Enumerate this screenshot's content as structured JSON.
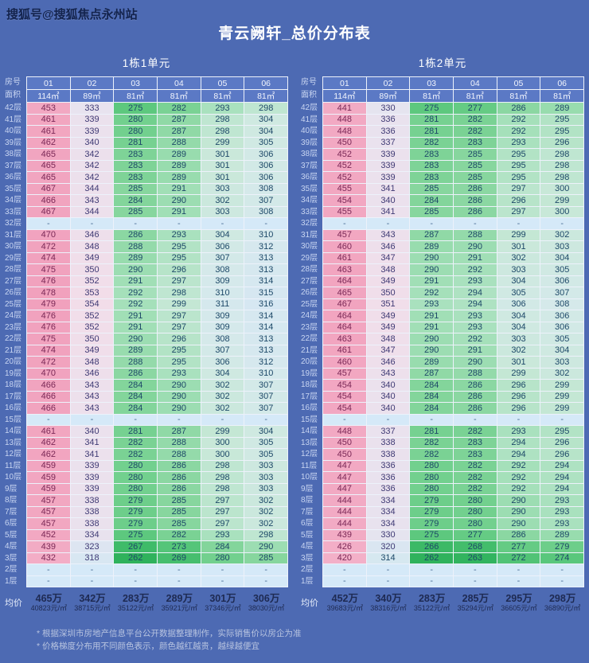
{
  "watermark": "搜狐号@搜狐焦点永州站",
  "title": "青云阙轩_总价分布表",
  "footnotes": [
    "* 根据深圳市房地产信息平台公开数据整理制作，实际销售价以房企为准",
    "* 价格梯度分布用不同颜色表示，颜色越红越贵，越绿越便宜"
  ],
  "colors": {
    "background": "#4d6ab3",
    "header_cell": "#5b79c5",
    "grid_line": "#edf2fb",
    "dash_cell": "#d5e9f8",
    "expensive_pink": "#f2a3bd",
    "cheap_green": "#2fb25c",
    "pink_text": "#7b2957",
    "lavender_text": "#3f3a74",
    "green_text": "#1d4868",
    "row_label_text": "#c9d6f2",
    "average_text": "#1e2a52",
    "title_text": "#ffffff"
  },
  "chart_data": {
    "type": "heatmap",
    "title": "青云阙轩_总价分布表",
    "legend_note": "颜色越红越贵，越绿越便宜",
    "tables": [
      {
        "unit": "1栋1单元",
        "corner": {
          "room_row": "房号",
          "area_row": "面积"
        },
        "columns": [
          "01",
          "02",
          "03",
          "04",
          "05",
          "06"
        ],
        "areas": [
          "114㎡",
          "89㎡",
          "81㎡",
          "81㎡",
          "81㎡",
          "81㎡"
        ],
        "floors": [
          "42层",
          "41层",
          "40层",
          "39层",
          "38层",
          "37层",
          "36层",
          "35层",
          "34层",
          "33层",
          "32层",
          "31层",
          "30层",
          "29层",
          "28层",
          "27层",
          "26层",
          "25层",
          "24层",
          "23层",
          "22层",
          "21层",
          "20层",
          "19层",
          "18层",
          "17层",
          "16层",
          "15层",
          "14层",
          "13层",
          "12层",
          "11层",
          "10层",
          "9层",
          "8层",
          "7层",
          "6层",
          "5层",
          "4层",
          "3层",
          "2层",
          "1层"
        ],
        "rows": [
          [
            453,
            333,
            275,
            282,
            293,
            298
          ],
          [
            461,
            339,
            280,
            287,
            298,
            304
          ],
          [
            461,
            339,
            280,
            287,
            298,
            304
          ],
          [
            462,
            340,
            281,
            288,
            299,
            305
          ],
          [
            465,
            342,
            283,
            289,
            301,
            306
          ],
          [
            465,
            342,
            283,
            289,
            301,
            306
          ],
          [
            465,
            342,
            283,
            289,
            301,
            306
          ],
          [
            467,
            344,
            285,
            291,
            303,
            308
          ],
          [
            466,
            343,
            284,
            290,
            302,
            307
          ],
          [
            467,
            344,
            285,
            291,
            303,
            308
          ],
          [
            "-",
            "-",
            "-",
            "-",
            "-",
            "-"
          ],
          [
            470,
            346,
            286,
            293,
            304,
            310
          ],
          [
            472,
            348,
            288,
            295,
            306,
            312
          ],
          [
            474,
            349,
            289,
            295,
            307,
            313
          ],
          [
            475,
            350,
            290,
            296,
            308,
            313
          ],
          [
            476,
            352,
            291,
            297,
            309,
            314
          ],
          [
            478,
            353,
            292,
            298,
            310,
            315
          ],
          [
            479,
            354,
            292,
            299,
            311,
            316
          ],
          [
            476,
            352,
            291,
            297,
            309,
            314
          ],
          [
            476,
            352,
            291,
            297,
            309,
            314
          ],
          [
            475,
            350,
            290,
            296,
            308,
            313
          ],
          [
            474,
            349,
            289,
            295,
            307,
            313
          ],
          [
            472,
            348,
            288,
            295,
            306,
            312
          ],
          [
            470,
            346,
            286,
            293,
            304,
            310
          ],
          [
            466,
            343,
            284,
            290,
            302,
            307
          ],
          [
            466,
            343,
            284,
            290,
            302,
            307
          ],
          [
            466,
            343,
            284,
            290,
            302,
            307
          ],
          [
            "-",
            "-",
            "-",
            "-",
            "-",
            "-"
          ],
          [
            461,
            340,
            281,
            287,
            299,
            304
          ],
          [
            462,
            341,
            282,
            288,
            300,
            305
          ],
          [
            462,
            341,
            282,
            288,
            300,
            305
          ],
          [
            459,
            339,
            280,
            286,
            298,
            303
          ],
          [
            459,
            339,
            280,
            286,
            298,
            303
          ],
          [
            459,
            339,
            280,
            286,
            298,
            303
          ],
          [
            457,
            338,
            279,
            285,
            297,
            302
          ],
          [
            457,
            338,
            279,
            285,
            297,
            302
          ],
          [
            457,
            338,
            279,
            285,
            297,
            302
          ],
          [
            452,
            334,
            275,
            282,
            293,
            298
          ],
          [
            439,
            323,
            267,
            273,
            284,
            290
          ],
          [
            432,
            318,
            262,
            269,
            280,
            285
          ],
          [
            "-",
            "-",
            "-",
            "-",
            "-",
            "-"
          ],
          [
            "-",
            "-",
            "-",
            "-",
            "-",
            "-"
          ]
        ],
        "average_label": "均价",
        "average_prices": [
          "465万",
          "342万",
          "283万",
          "289万",
          "301万",
          "306万"
        ],
        "average_unit_prices": [
          "40823元/㎡",
          "38715元/㎡",
          "35122元/㎡",
          "35921元/㎡",
          "37346元/㎡",
          "38030元/㎡"
        ]
      },
      {
        "unit": "1栋2单元",
        "corner": {
          "room_row": "房号",
          "area_row": "面积"
        },
        "columns": [
          "01",
          "02",
          "03",
          "04",
          "05",
          "06"
        ],
        "areas": [
          "114㎡",
          "89㎡",
          "81㎡",
          "81㎡",
          "81㎡",
          "81㎡"
        ],
        "floors": [
          "42层",
          "41层",
          "40层",
          "39层",
          "38层",
          "37层",
          "36层",
          "35层",
          "34层",
          "33层",
          "32层",
          "31层",
          "30层",
          "29层",
          "28层",
          "27层",
          "26层",
          "25层",
          "24层",
          "23层",
          "22层",
          "21层",
          "20层",
          "19层",
          "18层",
          "17层",
          "16层",
          "15层",
          "14层",
          "13层",
          "12层",
          "11层",
          "10层",
          "9层",
          "8层",
          "7层",
          "6层",
          "5层",
          "4层",
          "3层",
          "2层",
          "1层"
        ],
        "rows": [
          [
            441,
            330,
            275,
            277,
            286,
            289
          ],
          [
            448,
            336,
            281,
            282,
            292,
            295
          ],
          [
            448,
            336,
            281,
            282,
            292,
            295
          ],
          [
            450,
            337,
            282,
            283,
            293,
            296
          ],
          [
            452,
            339,
            283,
            285,
            295,
            298
          ],
          [
            452,
            339,
            283,
            285,
            295,
            298
          ],
          [
            452,
            339,
            283,
            285,
            295,
            298
          ],
          [
            455,
            341,
            285,
            286,
            297,
            300
          ],
          [
            454,
            340,
            284,
            286,
            296,
            299
          ],
          [
            455,
            341,
            285,
            286,
            297,
            300
          ],
          [
            "-",
            "-",
            "-",
            "-",
            "-",
            "-"
          ],
          [
            457,
            343,
            287,
            288,
            299,
            302
          ],
          [
            460,
            346,
            289,
            290,
            301,
            303
          ],
          [
            461,
            347,
            290,
            291,
            302,
            304
          ],
          [
            463,
            348,
            290,
            292,
            303,
            305
          ],
          [
            464,
            349,
            291,
            293,
            304,
            306
          ],
          [
            465,
            350,
            292,
            294,
            305,
            307
          ],
          [
            467,
            351,
            293,
            294,
            306,
            308
          ],
          [
            464,
            349,
            291,
            293,
            304,
            306
          ],
          [
            464,
            349,
            291,
            293,
            304,
            306
          ],
          [
            463,
            348,
            290,
            292,
            303,
            305
          ],
          [
            461,
            347,
            290,
            291,
            302,
            304
          ],
          [
            460,
            346,
            289,
            290,
            301,
            303
          ],
          [
            457,
            343,
            287,
            288,
            299,
            302
          ],
          [
            454,
            340,
            284,
            286,
            296,
            299
          ],
          [
            454,
            340,
            284,
            286,
            296,
            299
          ],
          [
            454,
            340,
            284,
            286,
            296,
            299
          ],
          [
            "-",
            "-",
            "-",
            "-",
            "-",
            "-"
          ],
          [
            448,
            337,
            281,
            282,
            293,
            295
          ],
          [
            450,
            338,
            282,
            283,
            294,
            296
          ],
          [
            450,
            338,
            282,
            283,
            294,
            296
          ],
          [
            447,
            336,
            280,
            282,
            292,
            294
          ],
          [
            447,
            336,
            280,
            282,
            292,
            294
          ],
          [
            447,
            336,
            280,
            282,
            292,
            294
          ],
          [
            444,
            334,
            279,
            280,
            290,
            293
          ],
          [
            444,
            334,
            279,
            280,
            290,
            293
          ],
          [
            444,
            334,
            279,
            280,
            290,
            293
          ],
          [
            439,
            330,
            275,
            277,
            286,
            289
          ],
          [
            426,
            320,
            266,
            268,
            277,
            279
          ],
          [
            420,
            314,
            262,
            263,
            272,
            274
          ],
          [
            "-",
            "-",
            "-",
            "-",
            "-",
            "-"
          ],
          [
            "-",
            "-",
            "-",
            "-",
            "-",
            "-"
          ]
        ],
        "average_label": "均价",
        "average_prices": [
          "452万",
          "340万",
          "283万",
          "285万",
          "295万",
          "298万"
        ],
        "average_unit_prices": [
          "39683元/㎡",
          "38316元/㎡",
          "35122元/㎡",
          "35294元/㎡",
          "36605元/㎡",
          "36890元/㎡"
        ]
      }
    ]
  }
}
